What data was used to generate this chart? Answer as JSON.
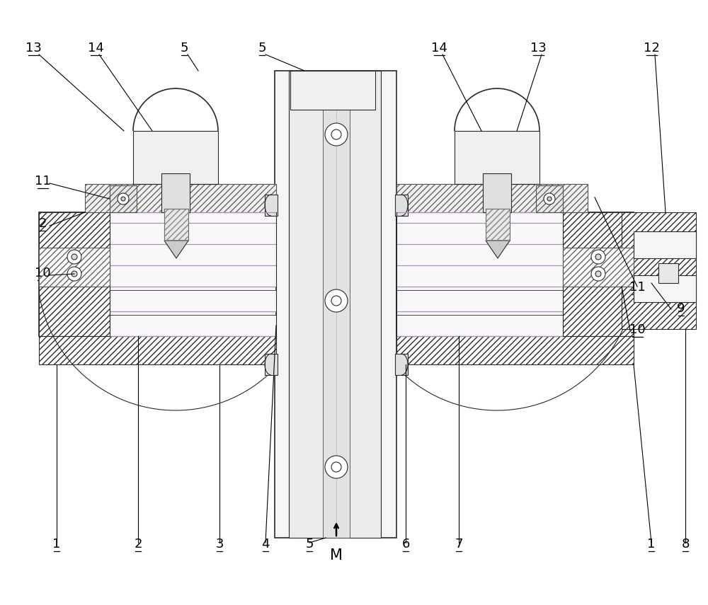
{
  "bg": "#ffffff",
  "lc": "#2a2a2a",
  "ac": "#000000",
  "pc": "#b090b8",
  "hc": "#555555",
  "lw": 0.8,
  "lw2": 1.2,
  "fs": 13
}
